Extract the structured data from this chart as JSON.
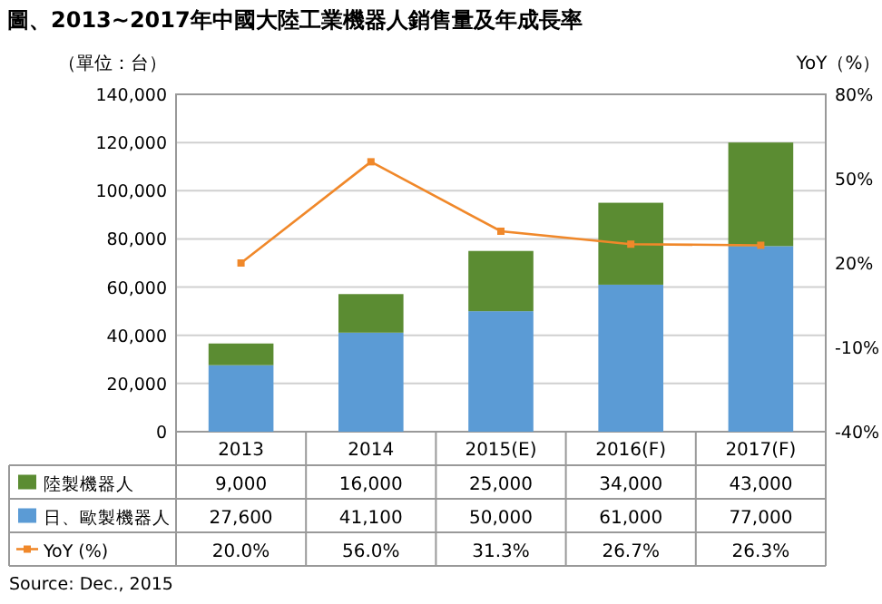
{
  "chart_data": {
    "type": "bar",
    "title": "圖、2013~2017年中國大陸工業機器人銷售量及年成長率",
    "ylabel": "（單位：台）",
    "y2label": "YoY（%）",
    "categories": [
      "2013",
      "2014",
      "2015(E)",
      "2016(F)",
      "2017(F)"
    ],
    "stacked": true,
    "series": [
      {
        "name": "日、歐製機器人",
        "color": "#5b9bd5",
        "values": [
          27600,
          41100,
          50000,
          61000,
          77000
        ],
        "value_labels": [
          "27,600",
          "41,100",
          "50,000",
          "61,000",
          "77,000"
        ]
      },
      {
        "name": "陸製機器人",
        "color": "#5b8c32",
        "values": [
          9000,
          16000,
          25000,
          34000,
          43000
        ],
        "value_labels": [
          "9,000",
          "16,000",
          "25,000",
          "34,000",
          "43,000"
        ]
      },
      {
        "name": "YoY (%)",
        "type": "line",
        "axis": "y2",
        "color": "#f0882a",
        "values": [
          20.0,
          56.0,
          31.3,
          26.7,
          26.3
        ],
        "value_labels": [
          "20.0%",
          "56.0%",
          "31.3%",
          "26.7%",
          "26.3%"
        ]
      }
    ],
    "ylim": [
      0,
      140000
    ],
    "yticks": [
      0,
      {
        "value": 20000,
        "label": "20,000"
      },
      {
        "value": 40000,
        "label": "40,000"
      },
      {
        "value": 60000,
        "label": "60,000"
      },
      {
        "value": 80000,
        "label": "80,000"
      },
      {
        "value": 100000,
        "label": "100,000"
      },
      {
        "value": 120000,
        "label": "120,000"
      },
      {
        "value": 140000,
        "label": "140,000"
      }
    ],
    "y2lim": [
      -40,
      80
    ],
    "y2ticks": [
      {
        "value": -40,
        "label": "-40%"
      },
      {
        "value": -10,
        "label": "-10%"
      },
      {
        "value": 20,
        "label": "20%"
      },
      {
        "value": 50,
        "label": "50%"
      },
      {
        "value": 80,
        "label": "80%"
      }
    ],
    "grid": "y",
    "legend": "bottom left",
    "marker": "square",
    "line_style": "solid",
    "annotations": [
      "Source: Dec., 2015"
    ]
  }
}
